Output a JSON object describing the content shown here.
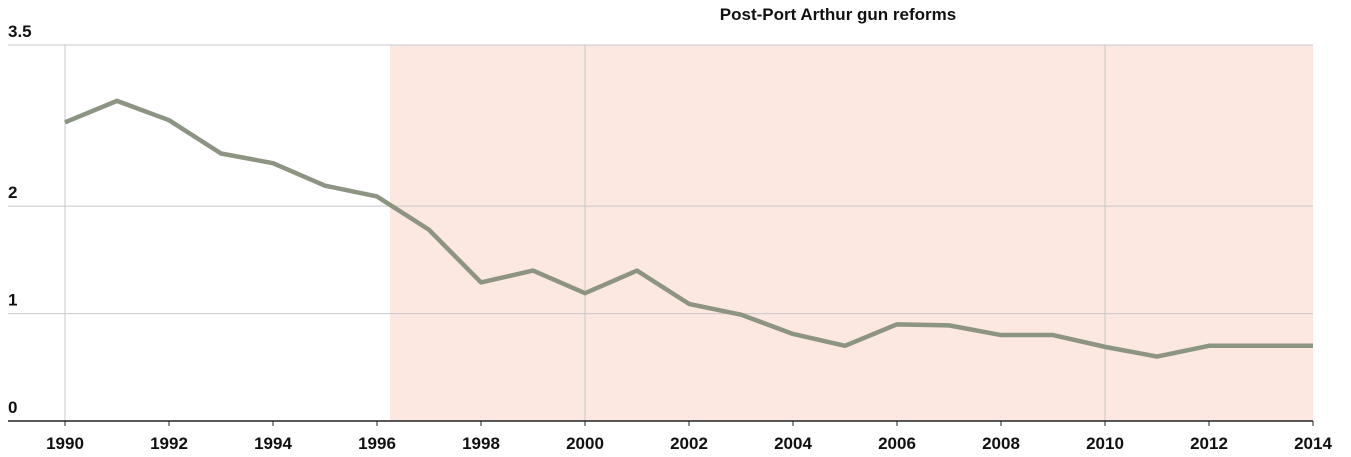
{
  "chart_data": {
    "type": "line",
    "annotation": "Post-Port Arthur gun reforms",
    "shade_from": 1996.25,
    "x": [
      1990,
      1991,
      1992,
      1993,
      1994,
      1995,
      1996,
      1997,
      1998,
      1999,
      2000,
      2001,
      2002,
      2003,
      2004,
      2005,
      2006,
      2007,
      2008,
      2009,
      2010,
      2011,
      2012,
      2013,
      2014
    ],
    "series": [
      {
        "color": "#8c9482",
        "values": [
          2.78,
          2.98,
          2.8,
          2.49,
          2.4,
          2.19,
          2.09,
          1.78,
          1.29,
          1.4,
          1.19,
          1.4,
          1.09,
          0.99,
          0.81,
          0.7,
          0.9,
          0.89,
          0.8,
          0.8,
          0.69,
          0.6,
          0.7,
          0.7,
          0.7
        ]
      }
    ],
    "xlim": [
      1990,
      2014
    ],
    "xticks": [
      1990,
      1992,
      1994,
      1996,
      1998,
      2000,
      2002,
      2004,
      2006,
      2008,
      2010,
      2012,
      2014
    ],
    "x_gridlines": [
      1990,
      2000,
      2010
    ],
    "ylim": [
      0,
      3.5
    ],
    "yticks": [
      0,
      1,
      2,
      3.5
    ],
    "grid": true,
    "shade_color": "#fce7e1"
  }
}
